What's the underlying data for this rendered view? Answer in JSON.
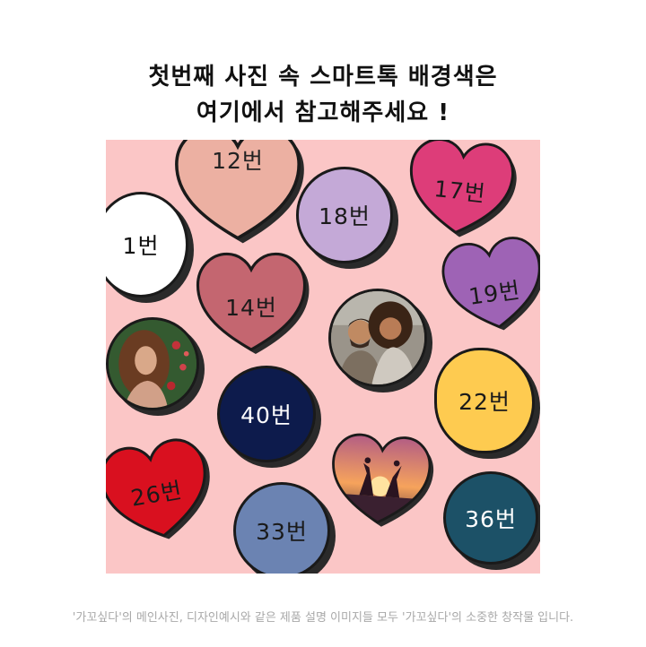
{
  "headline": {
    "line1": "첫번째 사진 속 스마트톡 배경색은",
    "line2": "여기에서 참고해주세요 !"
  },
  "colors": {
    "board_bg": "#fbc6c6",
    "outline": "#1a1a1a"
  },
  "swatches": {
    "s1": {
      "label": "1번",
      "color": "#ffffff",
      "text_color": "#111111"
    },
    "s12": {
      "label": "12번",
      "color": "#ecb0a2",
      "text_color": "#222222"
    },
    "s14": {
      "label": "14번",
      "color": "#c46670",
      "text_color": "#1a1a1a"
    },
    "s17": {
      "label": "17번",
      "color": "#dd3d79",
      "text_color": "#1a1a1a"
    },
    "s18": {
      "label": "18번",
      "color": "#c4a9d7",
      "text_color": "#1a1a1a"
    },
    "s19": {
      "label": "19번",
      "color": "#9e63b5",
      "text_color": "#1a1a1a"
    },
    "s22": {
      "label": "22번",
      "color": "#fecb50",
      "text_color": "#1a1a1a"
    },
    "s26": {
      "label": "26번",
      "color": "#d9101f",
      "text_color": "#1a1a1a"
    },
    "s33": {
      "label": "33번",
      "color": "#6b83b2",
      "text_color": "#1a1a1a"
    },
    "s36": {
      "label": "36번",
      "color": "#1c5167",
      "text_color": "#ffffff"
    },
    "s40": {
      "label": "40번",
      "color": "#0d1b4c",
      "text_color": "#ffffff"
    }
  },
  "photos": {
    "woman": "photo-circle-woman",
    "couple": "photo-circle-couple",
    "sunset": "photo-heart-sunset"
  },
  "footer": {
    "text": "'가꼬싶다'의 메인사진, 디자인예시와 같은 제품 설명 이미지들 모두 '가꼬싶다'의 소중한 창작물 입니다."
  }
}
